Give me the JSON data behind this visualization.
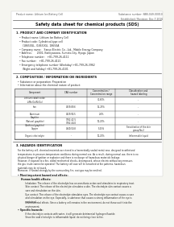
{
  "bg_color": "#f5f5f0",
  "page_bg": "#ffffff",
  "title": "Safety data sheet for chemical products (SDS)",
  "header_left": "Product name: Lithium Ion Battery Cell",
  "header_right_line1": "Substance number: SBN-049-00010",
  "header_right_line2": "Established / Revision: Dec.7.2016",
  "section1_title": "1. PRODUCT AND COMPANY IDENTIFICATION",
  "section1_lines": [
    "• Product name: Lithium Ion Battery Cell",
    "• Product code: Cylindrical-type cell",
    "    (18650GL, (18650GL, 18650A",
    "• Company name:   Sanyo Electric Co., Ltd., Mobile Energy Company",
    "• Address:      2001, Kamiyasawa, Sumoto-City, Hyogo, Japan",
    "• Telephone number:   +81-799-26-4111",
    "• Fax number:   +81-799-26-4121",
    "• Emergency telephone number (Weekday) +81-799-26-3962",
    "    (Night and holiday) +81-799-26-4101"
  ],
  "section2_title": "2. COMPOSITION / INFORMATION ON INGREDIENTS",
  "section2_intro": "• Substance or preparation: Preparation",
  "section2_sub": "• Information about the chemical nature of product:",
  "table_headers": [
    "Component",
    "CAS number",
    "Concentration /\nConcentration range",
    "Classification and\nhazard labeling"
  ],
  "table_rows": [
    [
      "Lithium cobalt oxide\n(LiMn/Co/Ni/Ox)",
      "-",
      "30-60%",
      "-"
    ],
    [
      "Iron",
      "7439-89-6",
      "15-25%",
      "-"
    ],
    [
      "Aluminum",
      "7429-90-5",
      "2-6%",
      "-"
    ],
    [
      "Graphite\n(Natural graphite)\n(Artificial graphite)",
      "7782-42-5\n7782-44-0",
      "10-20%",
      "-"
    ],
    [
      "Copper",
      "7440-50-8",
      "5-15%",
      "Sensitization of the skin\ngroup No.2"
    ],
    [
      "Organic electrolyte",
      "-",
      "10-20%",
      "Inflammable liquid"
    ]
  ],
  "section3_title": "3. HAZARDS IDENTIFICATION",
  "section3_para1": "For the battery cell, chemical materials are stored in a hermetically sealed metal case, designed to withstand\ntemperatures in pressure-temperature conditions during normal use. As a result, during normal use, there is no\nphysical danger of ignition or explosion and there is no danger of hazardous materials leakage.",
  "section3_para2": "However, if exposed to a fire, added mechanical shocks, decomposed, whose electric without any measure,\nthe gas inside cannot be operated. The battery cell case will be breached at fire patterns, hazardous\nmaterials may be released.",
  "section3_para3": "Moreover, if heated strongly by the surrounding fire, soot gas may be emitted.",
  "section3_bullet1": "• Most important hazard and effects:",
  "section3_human": "Human health effects:",
  "section3_inhale": "    Inhalation: The release of the electrolyte has an anesthesia action and stimulates to respiratory tract.\n    Skin contact: The release of the electrolyte stimulates a skin. The electrolyte skin contact causes a\n    sore and stimulation on the skin.\n    Eye contact: The release of the electrolyte stimulates eyes. The electrolyte eye contact causes a sore\n    and stimulation on the eye. Especially, a substance that causes a strong inflammation of the eye is\n    contained.",
  "section3_env": "    Environmental effects: Since a battery cell remains in the environment, do not throw out it into the\n    environment.",
  "section3_bullet2": "• Specific hazards:",
  "section3_specific": "    If the electrolyte contacts with water, it will generate detrimental hydrogen fluoride.\n    Since the said electrolyte is inflammable liquid, do not bring close to fire."
}
